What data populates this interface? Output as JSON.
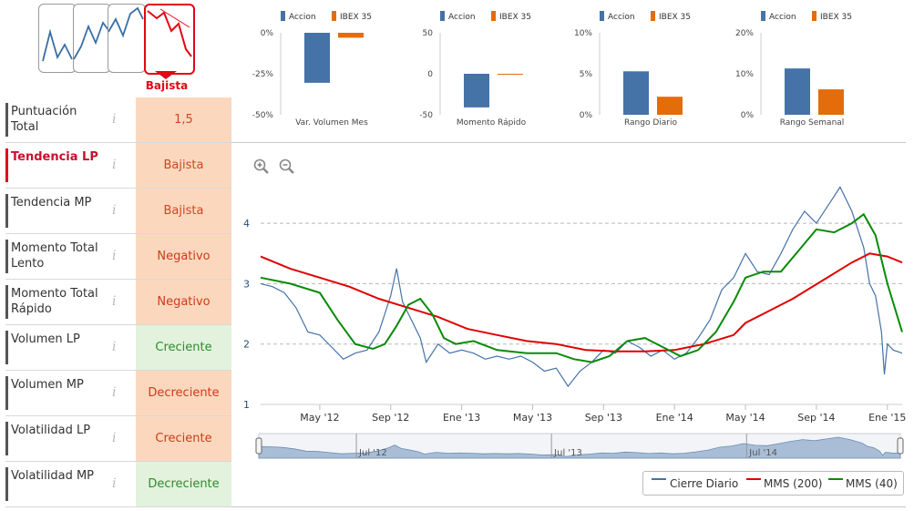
{
  "trend_selector": {
    "cards": [
      "trend-card-1",
      "trend-card-2",
      "trend-card-3",
      "trend-card-4"
    ],
    "active_label": "Bajista",
    "accent_color": "#e30613"
  },
  "metrics": [
    {
      "label": "Puntuación Total",
      "value": "1,5",
      "tone": "neutral",
      "active": false
    },
    {
      "label": "Tendencia LP",
      "value": "Bajista",
      "tone": "neutral",
      "active": true
    },
    {
      "label": "Tendencia MP",
      "value": "Bajista",
      "tone": "neutral",
      "active": false
    },
    {
      "label": "Momento Total Lento",
      "value": "Negativo",
      "tone": "bad",
      "active": false
    },
    {
      "label": "Momento Total Rápido",
      "value": "Negativo",
      "tone": "bad",
      "active": false
    },
    {
      "label": "Volumen LP",
      "value": "Creciente",
      "tone": "good",
      "active": false
    },
    {
      "label": "Volumen MP",
      "value": "Decreciente",
      "tone": "bad",
      "active": false
    },
    {
      "label": "Volatilidad LP",
      "value": "Creciente",
      "tone": "bad",
      "active": false
    },
    {
      "label": "Volatilidad MP",
      "value": "Decreciente",
      "tone": "good",
      "active": false
    }
  ],
  "info_glyph": "i",
  "chart_data": [
    {
      "type": "bar",
      "title": "Var. Volumen Mes",
      "series": [
        {
          "name": "Accion",
          "values": [
            -30.5
          ],
          "color": "#4572a7"
        },
        {
          "name": "IBEX 35",
          "values": [
            -3
          ],
          "color": "#e46c0a"
        }
      ],
      "yticks": [
        "0%",
        "-25%",
        "-50%"
      ],
      "ylim": [
        -50,
        0
      ]
    },
    {
      "type": "bar",
      "title": "Momento Rápido",
      "series": [
        {
          "name": "Accion",
          "values": [
            -41
          ],
          "color": "#4572a7"
        },
        {
          "name": "IBEX 35",
          "values": [
            0
          ],
          "color": "#e46c0a"
        }
      ],
      "yticks": [
        "50",
        "0",
        "-50"
      ],
      "ylim": [
        -50,
        50
      ]
    },
    {
      "type": "bar",
      "title": "Rango Diario",
      "series": [
        {
          "name": "Accion",
          "values": [
            5.3
          ],
          "color": "#4572a7"
        },
        {
          "name": "IBEX 35",
          "values": [
            2.2
          ],
          "color": "#e46c0a"
        }
      ],
      "yticks": [
        "10%",
        "5%",
        "0%"
      ],
      "ylim": [
        0,
        10
      ]
    },
    {
      "type": "bar",
      "title": "Rango Semanal",
      "series": [
        {
          "name": "Accion",
          "values": [
            11.3
          ],
          "color": "#4572a7"
        },
        {
          "name": "IBEX 35",
          "values": [
            6.2
          ],
          "color": "#e46c0a"
        }
      ],
      "yticks": [
        "20%",
        "10%",
        "0%"
      ],
      "ylim": [
        0,
        20
      ]
    },
    {
      "type": "line",
      "title": "",
      "ylim": [
        1,
        4.5
      ],
      "yticks": [
        1,
        2,
        3,
        4
      ],
      "xticks": [
        "May '12",
        "Sep '12",
        "Ene '13",
        "May '13",
        "Sep '13",
        "Ene '14",
        "May '14",
        "Sep '14",
        "Ene '15"
      ],
      "xtick_t": [
        0.0,
        0.12,
        0.24,
        0.36,
        0.48,
        0.6,
        0.72,
        0.84,
        0.96
      ],
      "t_range": [
        -0.1,
        0.985
      ],
      "series": [
        {
          "name": "Cierre Diario",
          "color": "#4572a7",
          "points": [
            [
              -0.1,
              3.0
            ],
            [
              -0.08,
              2.95
            ],
            [
              -0.06,
              2.85
            ],
            [
              -0.04,
              2.6
            ],
            [
              -0.02,
              2.2
            ],
            [
              0,
              2.15
            ],
            [
              0.02,
              1.95
            ],
            [
              0.04,
              1.75
            ],
            [
              0.06,
              1.85
            ],
            [
              0.08,
              1.9
            ],
            [
              0.1,
              2.2
            ],
            [
              0.11,
              2.5
            ],
            [
              0.12,
              2.8
            ],
            [
              0.13,
              3.25
            ],
            [
              0.14,
              2.7
            ],
            [
              0.15,
              2.5
            ],
            [
              0.16,
              2.3
            ],
            [
              0.17,
              2.1
            ],
            [
              0.18,
              1.7
            ],
            [
              0.2,
              2.0
            ],
            [
              0.22,
              1.85
            ],
            [
              0.24,
              1.9
            ],
            [
              0.26,
              1.85
            ],
            [
              0.28,
              1.75
            ],
            [
              0.3,
              1.8
            ],
            [
              0.32,
              1.75
            ],
            [
              0.34,
              1.8
            ],
            [
              0.36,
              1.7
            ],
            [
              0.38,
              1.55
            ],
            [
              0.4,
              1.6
            ],
            [
              0.42,
              1.3
            ],
            [
              0.44,
              1.55
            ],
            [
              0.46,
              1.7
            ],
            [
              0.48,
              1.9
            ],
            [
              0.5,
              1.85
            ],
            [
              0.52,
              2.05
            ],
            [
              0.54,
              1.95
            ],
            [
              0.56,
              1.8
            ],
            [
              0.58,
              1.9
            ],
            [
              0.6,
              1.75
            ],
            [
              0.62,
              1.85
            ],
            [
              0.64,
              2.1
            ],
            [
              0.66,
              2.4
            ],
            [
              0.68,
              2.9
            ],
            [
              0.7,
              3.1
            ],
            [
              0.72,
              3.5
            ],
            [
              0.74,
              3.2
            ],
            [
              0.76,
              3.15
            ],
            [
              0.78,
              3.5
            ],
            [
              0.8,
              3.9
            ],
            [
              0.82,
              4.2
            ],
            [
              0.84,
              4.0
            ],
            [
              0.86,
              4.3
            ],
            [
              0.88,
              4.6
            ],
            [
              0.9,
              4.2
            ],
            [
              0.92,
              3.6
            ],
            [
              0.93,
              3.0
            ],
            [
              0.94,
              2.8
            ],
            [
              0.95,
              2.2
            ],
            [
              0.955,
              1.5
            ],
            [
              0.96,
              2.0
            ],
            [
              0.97,
              1.9
            ],
            [
              0.985,
              1.85
            ]
          ]
        },
        {
          "name": "MMS (200)",
          "color": "#e00000",
          "points": [
            [
              -0.1,
              3.45
            ],
            [
              -0.05,
              3.25
            ],
            [
              0,
              3.1
            ],
            [
              0.05,
              2.95
            ],
            [
              0.1,
              2.75
            ],
            [
              0.15,
              2.6
            ],
            [
              0.2,
              2.45
            ],
            [
              0.25,
              2.25
            ],
            [
              0.3,
              2.15
            ],
            [
              0.35,
              2.05
            ],
            [
              0.4,
              2.0
            ],
            [
              0.45,
              1.9
            ],
            [
              0.5,
              1.88
            ],
            [
              0.55,
              1.88
            ],
            [
              0.6,
              1.9
            ],
            [
              0.65,
              2.0
            ],
            [
              0.7,
              2.15
            ],
            [
              0.72,
              2.35
            ],
            [
              0.75,
              2.5
            ],
            [
              0.8,
              2.75
            ],
            [
              0.85,
              3.05
            ],
            [
              0.9,
              3.35
            ],
            [
              0.93,
              3.5
            ],
            [
              0.96,
              3.45
            ],
            [
              0.985,
              3.35
            ]
          ]
        },
        {
          "name": "MMS (40)",
          "color": "#0a8a0a",
          "points": [
            [
              -0.1,
              3.1
            ],
            [
              -0.05,
              3.0
            ],
            [
              0,
              2.85
            ],
            [
              0.03,
              2.4
            ],
            [
              0.06,
              2.0
            ],
            [
              0.09,
              1.92
            ],
            [
              0.11,
              2.0
            ],
            [
              0.13,
              2.3
            ],
            [
              0.15,
              2.65
            ],
            [
              0.17,
              2.75
            ],
            [
              0.19,
              2.5
            ],
            [
              0.21,
              2.1
            ],
            [
              0.23,
              2.0
            ],
            [
              0.26,
              2.05
            ],
            [
              0.3,
              1.9
            ],
            [
              0.35,
              1.85
            ],
            [
              0.4,
              1.85
            ],
            [
              0.43,
              1.75
            ],
            [
              0.46,
              1.7
            ],
            [
              0.49,
              1.8
            ],
            [
              0.52,
              2.05
            ],
            [
              0.55,
              2.1
            ],
            [
              0.58,
              1.95
            ],
            [
              0.61,
              1.8
            ],
            [
              0.64,
              1.9
            ],
            [
              0.67,
              2.2
            ],
            [
              0.7,
              2.7
            ],
            [
              0.72,
              3.1
            ],
            [
              0.75,
              3.2
            ],
            [
              0.78,
              3.2
            ],
            [
              0.81,
              3.55
            ],
            [
              0.84,
              3.9
            ],
            [
              0.87,
              3.85
            ],
            [
              0.9,
              4.0
            ],
            [
              0.92,
              4.15
            ],
            [
              0.94,
              3.8
            ],
            [
              0.96,
              3.0
            ],
            [
              0.985,
              2.2
            ]
          ]
        }
      ],
      "navigator_labels": [
        "Jul '12",
        "Jul '13",
        "Jul '14"
      ],
      "navigator_t": [
        0.065,
        0.395,
        0.725
      ]
    }
  ],
  "legend": [
    {
      "label": "Cierre Diario",
      "color": "#4572a7"
    },
    {
      "label": "MMS (200)",
      "color": "#e00000"
    },
    {
      "label": "MMS (40)",
      "color": "#0a8a0a"
    }
  ],
  "zoom": {
    "in_icon": "zoom-in-icon",
    "out_icon": "zoom-out-icon"
  }
}
